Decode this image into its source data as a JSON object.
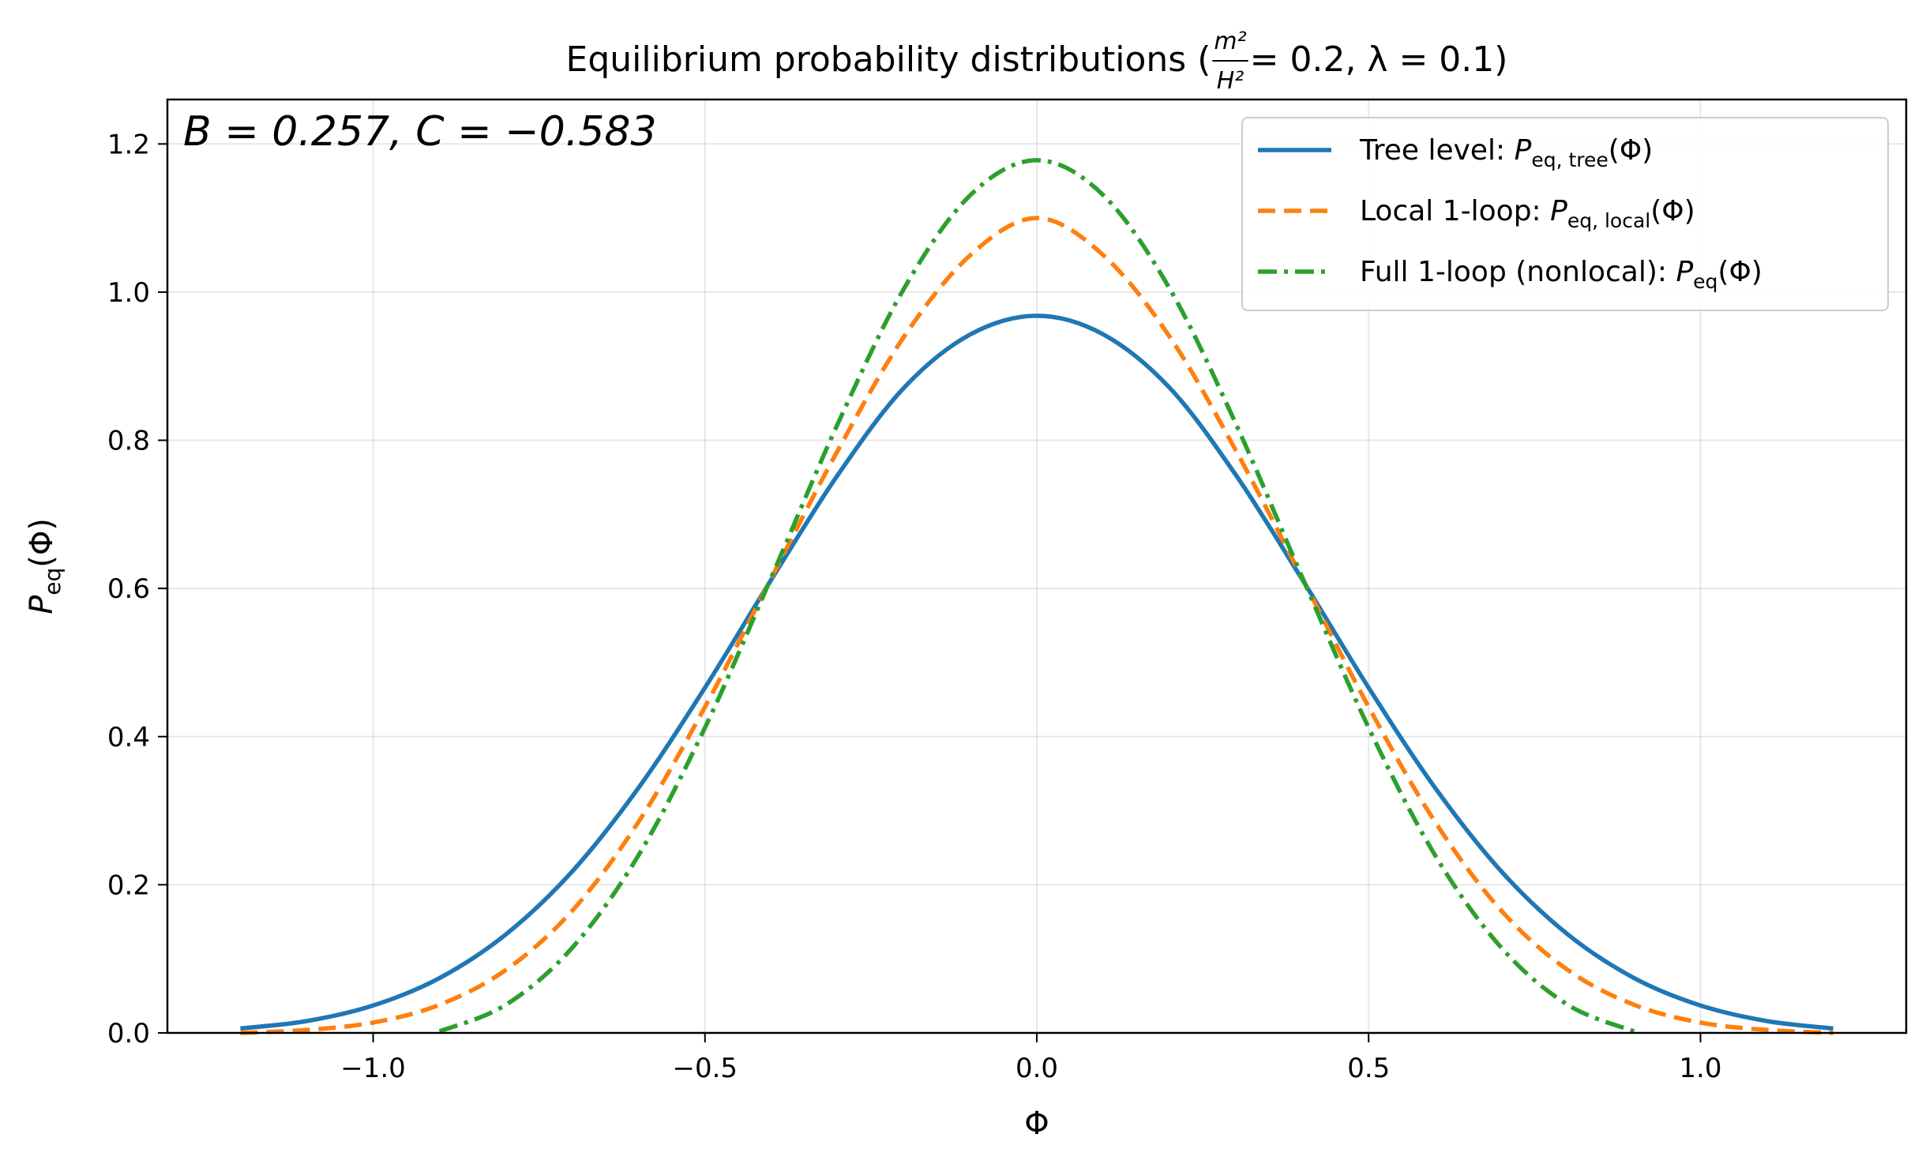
{
  "chart_data": {
    "type": "line",
    "title_prefix": "Equilibrium probability distributions (",
    "title_frac_num": "m²",
    "title_frac_den": "H²",
    "title_suffix": " = 0.2, λ = 0.1)",
    "annotation": "B = 0.257,  C = −0.583",
    "xlabel": "Φ",
    "ylabel": "Peq(Φ)",
    "xlim": [
      -1.31,
      1.31
    ],
    "ylim": [
      0.0,
      1.26
    ],
    "xticks": [
      -1.0,
      -0.5,
      0.0,
      0.5,
      1.0
    ],
    "xtick_labels": [
      "−1.0",
      "−0.5",
      "0.0",
      "0.5",
      "1.0"
    ],
    "yticks": [
      0.0,
      0.2,
      0.4,
      0.6,
      0.8,
      1.0,
      1.2
    ],
    "ytick_labels": [
      "0.0",
      "0.2",
      "0.4",
      "0.6",
      "0.8",
      "1.0",
      "1.2"
    ],
    "grid": true,
    "legend_position": "top-right",
    "x": [
      -1.2,
      -1.1,
      -1.0,
      -0.9,
      -0.8,
      -0.7,
      -0.6,
      -0.5,
      -0.4,
      -0.3,
      -0.2,
      -0.1,
      0.0,
      0.1,
      0.2,
      0.3,
      0.4,
      0.5,
      0.6,
      0.7,
      0.8,
      0.9,
      1.0,
      1.1,
      1.2
    ],
    "series": [
      {
        "name": "Tree level",
        "legend_label": "Tree level: ",
        "legend_symbol": "P",
        "legend_sub": "eq, tree",
        "legend_tail": "(Φ)",
        "color": "#1f77b4",
        "style": "solid",
        "values": [
          0.006,
          0.016,
          0.037,
          0.074,
          0.133,
          0.218,
          0.331,
          0.466,
          0.612,
          0.753,
          0.871,
          0.943,
          0.968,
          0.943,
          0.871,
          0.753,
          0.612,
          0.466,
          0.331,
          0.218,
          0.133,
          0.074,
          0.037,
          0.016,
          0.006
        ]
      },
      {
        "name": "Local 1-loop",
        "legend_label": "Local 1-loop: ",
        "legend_symbol": "P",
        "legend_sub": "eq, local",
        "legend_tail": "(Φ)",
        "color": "#ff7f0e",
        "style": "dashed",
        "values": [
          0.0,
          0.004,
          0.014,
          0.038,
          0.085,
          0.165,
          0.285,
          0.44,
          0.614,
          0.786,
          0.94,
          1.05,
          1.1,
          1.05,
          0.94,
          0.786,
          0.614,
          0.44,
          0.285,
          0.165,
          0.085,
          0.038,
          0.014,
          0.004,
          0.0
        ]
      },
      {
        "name": "Full 1-loop (nonlocal)",
        "legend_label": "Full 1-loop (nonlocal): ",
        "legend_symbol": "P",
        "legend_sub": "eq",
        "legend_tail": "(Φ)",
        "color": "#2ca02c",
        "style": "dashdot",
        "values": [
          null,
          null,
          null,
          0.002,
          0.038,
          0.115,
          0.24,
          0.412,
          0.615,
          0.822,
          1.005,
          1.131,
          1.178,
          1.131,
          1.005,
          0.822,
          0.615,
          0.412,
          0.24,
          0.115,
          0.038,
          0.002,
          null,
          null,
          null
        ]
      }
    ]
  }
}
